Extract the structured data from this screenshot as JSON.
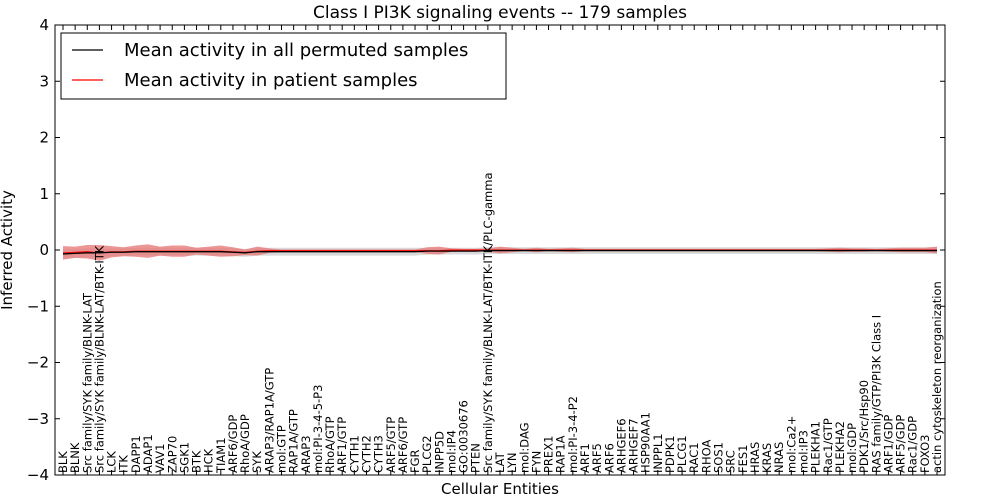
{
  "chart_data": {
    "type": "line",
    "title": "Class I PI3K signaling events -- 179 samples",
    "xlabel": "Cellular Entities",
    "ylabel": "Inferred Activity",
    "ylim": [
      -4,
      4
    ],
    "yticks": [
      "−4",
      "−3",
      "−2",
      "−1",
      "0",
      "1",
      "2",
      "3",
      "4"
    ],
    "categories": [
      "BLK",
      "BLNK",
      "Src family/SYK family/BLNK-LAT",
      "Src family/SYK family/BLNK-LAT/BTK-ITK",
      "LCK",
      "ITK",
      "DAPP1",
      "ADAP1",
      "VAV1",
      "ZAP70",
      "SGK1",
      "BTK",
      "HCK",
      "TIAM1",
      "ARF6/GDP",
      "RhoA/GDP",
      "SYK",
      "ARAP3/RAP1A/GTP",
      "mol:GTP",
      "RAP1A/GTP",
      "ARAP3",
      "mol:PI-3-4-5-P3",
      "RhoA/GTP",
      "ARF1/GTP",
      "CYTH1",
      "CYTH2",
      "CYTH3",
      "ARF5/GTP",
      "ARF6/GTP",
      "FGR",
      "PLCG2",
      "INPP5D",
      "mol:IP4",
      "GO:0030676",
      "PTEN",
      "Src family/SYK family/BLNK-LAT/BTK-ITK/PLC-gamma",
      "LAT",
      "LYN",
      "mol:DAG",
      "FYN",
      "PREX1",
      "RAP1A",
      "mol:PI-3-4-P2",
      "ARF1",
      "ARF5",
      "ARF6",
      "ARHGEF6",
      "ARHGEF7",
      "HSP90AA1",
      "INPPL1",
      "PDPK1",
      "PLCG1",
      "RAC1",
      "RHOA",
      "SOS1",
      "SRC",
      "FES1",
      "HRAS",
      "KRAS",
      "NRAS",
      "mol:Ca2+",
      "mol:IP3",
      "PLEKHA1",
      "Rac1/GTP",
      "PLEKHA2",
      "mol:GDP",
      "PDK1/Src/Hsp90",
      "RAS family/GTP/PI3K Class I",
      "ARF1/GDP",
      "ARF5/GDP",
      "Rac1/GDP",
      "FOXO3",
      "actin cytoskeleton reorganization"
    ],
    "series": [
      {
        "name": "Mean activity in all permuted samples",
        "color": "#000000",
        "values": [
          -0.07,
          -0.06,
          -0.05,
          -0.05,
          -0.04,
          -0.04,
          -0.03,
          -0.03,
          -0.03,
          -0.03,
          -0.03,
          -0.03,
          -0.03,
          -0.03,
          -0.04,
          -0.05,
          -0.03,
          -0.03,
          -0.03,
          -0.03,
          -0.03,
          -0.03,
          -0.03,
          -0.03,
          -0.03,
          -0.03,
          -0.03,
          -0.03,
          -0.03,
          -0.03,
          -0.02,
          -0.02,
          -0.02,
          -0.02,
          -0.02,
          -0.01,
          -0.01,
          -0.01,
          -0.01,
          -0.01,
          -0.01,
          -0.01,
          -0.01,
          -0.01,
          -0.01,
          -0.01,
          -0.01,
          -0.01,
          -0.01,
          -0.01,
          -0.01,
          -0.01,
          -0.01,
          -0.01,
          -0.01,
          -0.01,
          -0.01,
          -0.01,
          -0.01,
          -0.01,
          -0.01,
          -0.01,
          -0.01,
          -0.01,
          -0.01,
          -0.01,
          -0.01,
          -0.01,
          -0.01,
          -0.01,
          -0.01,
          -0.01,
          -0.01
        ],
        "std": [
          0.08,
          0.08,
          0.08,
          0.08,
          0.07,
          0.07,
          0.07,
          0.07,
          0.07,
          0.07,
          0.07,
          0.07,
          0.07,
          0.07,
          0.07,
          0.07,
          0.07,
          0.07,
          0.07,
          0.07,
          0.07,
          0.07,
          0.07,
          0.07,
          0.07,
          0.07,
          0.07,
          0.07,
          0.07,
          0.07,
          0.06,
          0.06,
          0.06,
          0.06,
          0.06,
          0.06,
          0.06,
          0.06,
          0.06,
          0.06,
          0.06,
          0.06,
          0.06,
          0.06,
          0.06,
          0.06,
          0.06,
          0.06,
          0.06,
          0.06,
          0.06,
          0.06,
          0.06,
          0.06,
          0.06,
          0.06,
          0.06,
          0.06,
          0.06,
          0.06,
          0.06,
          0.06,
          0.06,
          0.06,
          0.06,
          0.06,
          0.06,
          0.06,
          0.06,
          0.06,
          0.06,
          0.06,
          0.06
        ],
        "band_color": "#cccccc"
      },
      {
        "name": "Mean activity in patient samples",
        "color": "#ff0000",
        "values": [
          -0.05,
          -0.04,
          -0.03,
          -0.05,
          -0.03,
          -0.03,
          -0.02,
          -0.02,
          -0.02,
          -0.02,
          -0.02,
          -0.02,
          -0.02,
          -0.02,
          -0.03,
          -0.04,
          -0.02,
          -0.01,
          -0.01,
          -0.01,
          -0.01,
          -0.01,
          -0.01,
          -0.01,
          -0.01,
          -0.01,
          -0.01,
          -0.01,
          -0.01,
          -0.01,
          -0.01,
          -0.01,
          0.0,
          0.0,
          0.0,
          0.0,
          0.0,
          0.0,
          0.0,
          0.0,
          0.0,
          0.0,
          0.0,
          0.0,
          0.0,
          0.0,
          0.0,
          0.0,
          0.0,
          0.0,
          0.0,
          0.0,
          0.0,
          0.0,
          0.0,
          0.0,
          0.0,
          0.0,
          0.0,
          0.0,
          0.0,
          0.0,
          0.0,
          0.0,
          0.0,
          0.0,
          0.0,
          0.0,
          0.0,
          0.0,
          0.0,
          0.0,
          0.0
        ],
        "std": [
          0.12,
          0.1,
          0.12,
          0.14,
          0.1,
          0.08,
          0.1,
          0.12,
          0.08,
          0.1,
          0.1,
          0.06,
          0.08,
          0.1,
          0.08,
          0.05,
          0.08,
          0.04,
          0.02,
          0.02,
          0.02,
          0.02,
          0.02,
          0.02,
          0.02,
          0.02,
          0.02,
          0.02,
          0.02,
          0.02,
          0.06,
          0.07,
          0.03,
          0.02,
          0.02,
          0.03,
          0.06,
          0.04,
          0.02,
          0.04,
          0.02,
          0.03,
          0.04,
          0.02,
          0.02,
          0.02,
          0.02,
          0.02,
          0.02,
          0.02,
          0.02,
          0.02,
          0.02,
          0.02,
          0.02,
          0.02,
          0.02,
          0.02,
          0.02,
          0.02,
          0.02,
          0.02,
          0.02,
          0.03,
          0.04,
          0.03,
          0.03,
          0.02,
          0.03,
          0.04,
          0.04,
          0.04,
          0.06
        ],
        "band_color": "#e87c7c"
      }
    ],
    "legend_position": "top-left",
    "grid": false
  }
}
